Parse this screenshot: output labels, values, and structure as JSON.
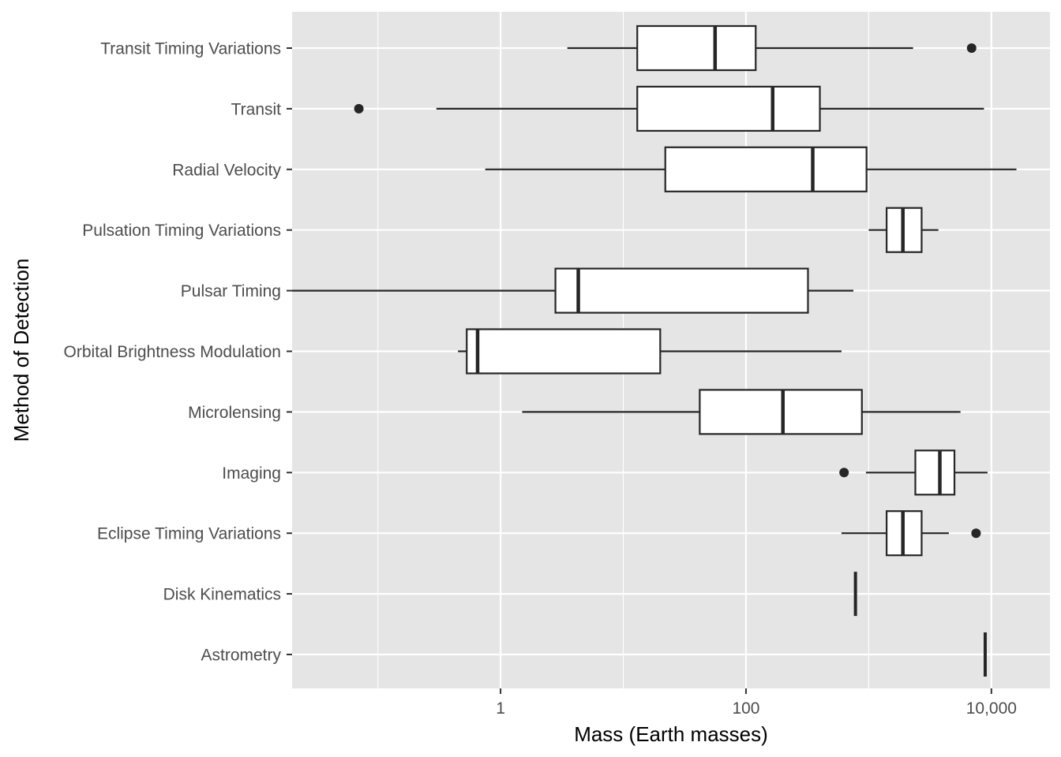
{
  "chart_data": {
    "type": "boxplot",
    "orientation": "horizontal",
    "xlabel": "Mass (Earth masses)",
    "ylabel": "Method of Detection",
    "x_scale": "log10",
    "xlim": [
      0.02,
      30000
    ],
    "x_ticks": [
      1,
      100,
      10000
    ],
    "x_tick_labels": [
      "1",
      "100",
      "10,000"
    ],
    "grid": true,
    "colors": {
      "panel_background": "#e5e5e5",
      "grid": "#ffffff",
      "box_fill": "#ffffff",
      "box_stroke": "#262626",
      "outlier": "#262626"
    },
    "categories": [
      "Astrometry",
      "Disk Kinematics",
      "Eclipse Timing Variations",
      "Imaging",
      "Microlensing",
      "Orbital Brightness Modulation",
      "Pulsar Timing",
      "Pulsation Timing Variations",
      "Radial Velocity",
      "Transit",
      "Transit Timing Variations"
    ],
    "boxes": [
      {
        "category": "Astrometry",
        "whisker_low": 8900,
        "q1": 8900,
        "median": 8900,
        "q3": 8900,
        "whisker_high": 8900,
        "outliers": []
      },
      {
        "category": "Disk Kinematics",
        "whisker_low": 780,
        "q1": 780,
        "median": 780,
        "q3": 780,
        "whisker_high": 780,
        "outliers": []
      },
      {
        "category": "Eclipse Timing Variations",
        "whisker_low": 600,
        "q1": 1400,
        "median": 1900,
        "q3": 2700,
        "whisker_high": 4500,
        "outliers": [
          7500
        ]
      },
      {
        "category": "Imaging",
        "whisker_low": 950,
        "q1": 2400,
        "median": 3800,
        "q3": 5000,
        "whisker_high": 9300,
        "outliers": [
          630
        ]
      },
      {
        "category": "Microlensing",
        "whisker_low": 1.5,
        "q1": 42,
        "median": 200,
        "q3": 880,
        "whisker_high": 5600,
        "outliers": []
      },
      {
        "category": "Orbital Brightness Modulation",
        "whisker_low": 0.45,
        "q1": 0.53,
        "median": 0.65,
        "q3": 20,
        "whisker_high": 600,
        "outliers": []
      },
      {
        "category": "Pulsar Timing",
        "whisker_low": 0.02,
        "q1": 2.8,
        "median": 4.3,
        "q3": 320,
        "whisker_high": 750,
        "outliers": []
      },
      {
        "category": "Pulsation Timing Variations",
        "whisker_low": 1000,
        "q1": 1400,
        "median": 1900,
        "q3": 2700,
        "whisker_high": 3700,
        "outliers": []
      },
      {
        "category": "Radial Velocity",
        "whisker_low": 0.75,
        "q1": 22,
        "median": 350,
        "q3": 960,
        "whisker_high": 16000,
        "outliers": []
      },
      {
        "category": "Transit",
        "whisker_low": 0.3,
        "q1": 13,
        "median": 165,
        "q3": 400,
        "whisker_high": 8700,
        "outliers": [
          0.07
        ]
      },
      {
        "category": "Transit Timing Variations",
        "whisker_low": 3.5,
        "q1": 13,
        "median": 56,
        "q3": 120,
        "whisker_high": 2300,
        "outliers": [
          6900
        ]
      }
    ]
  }
}
